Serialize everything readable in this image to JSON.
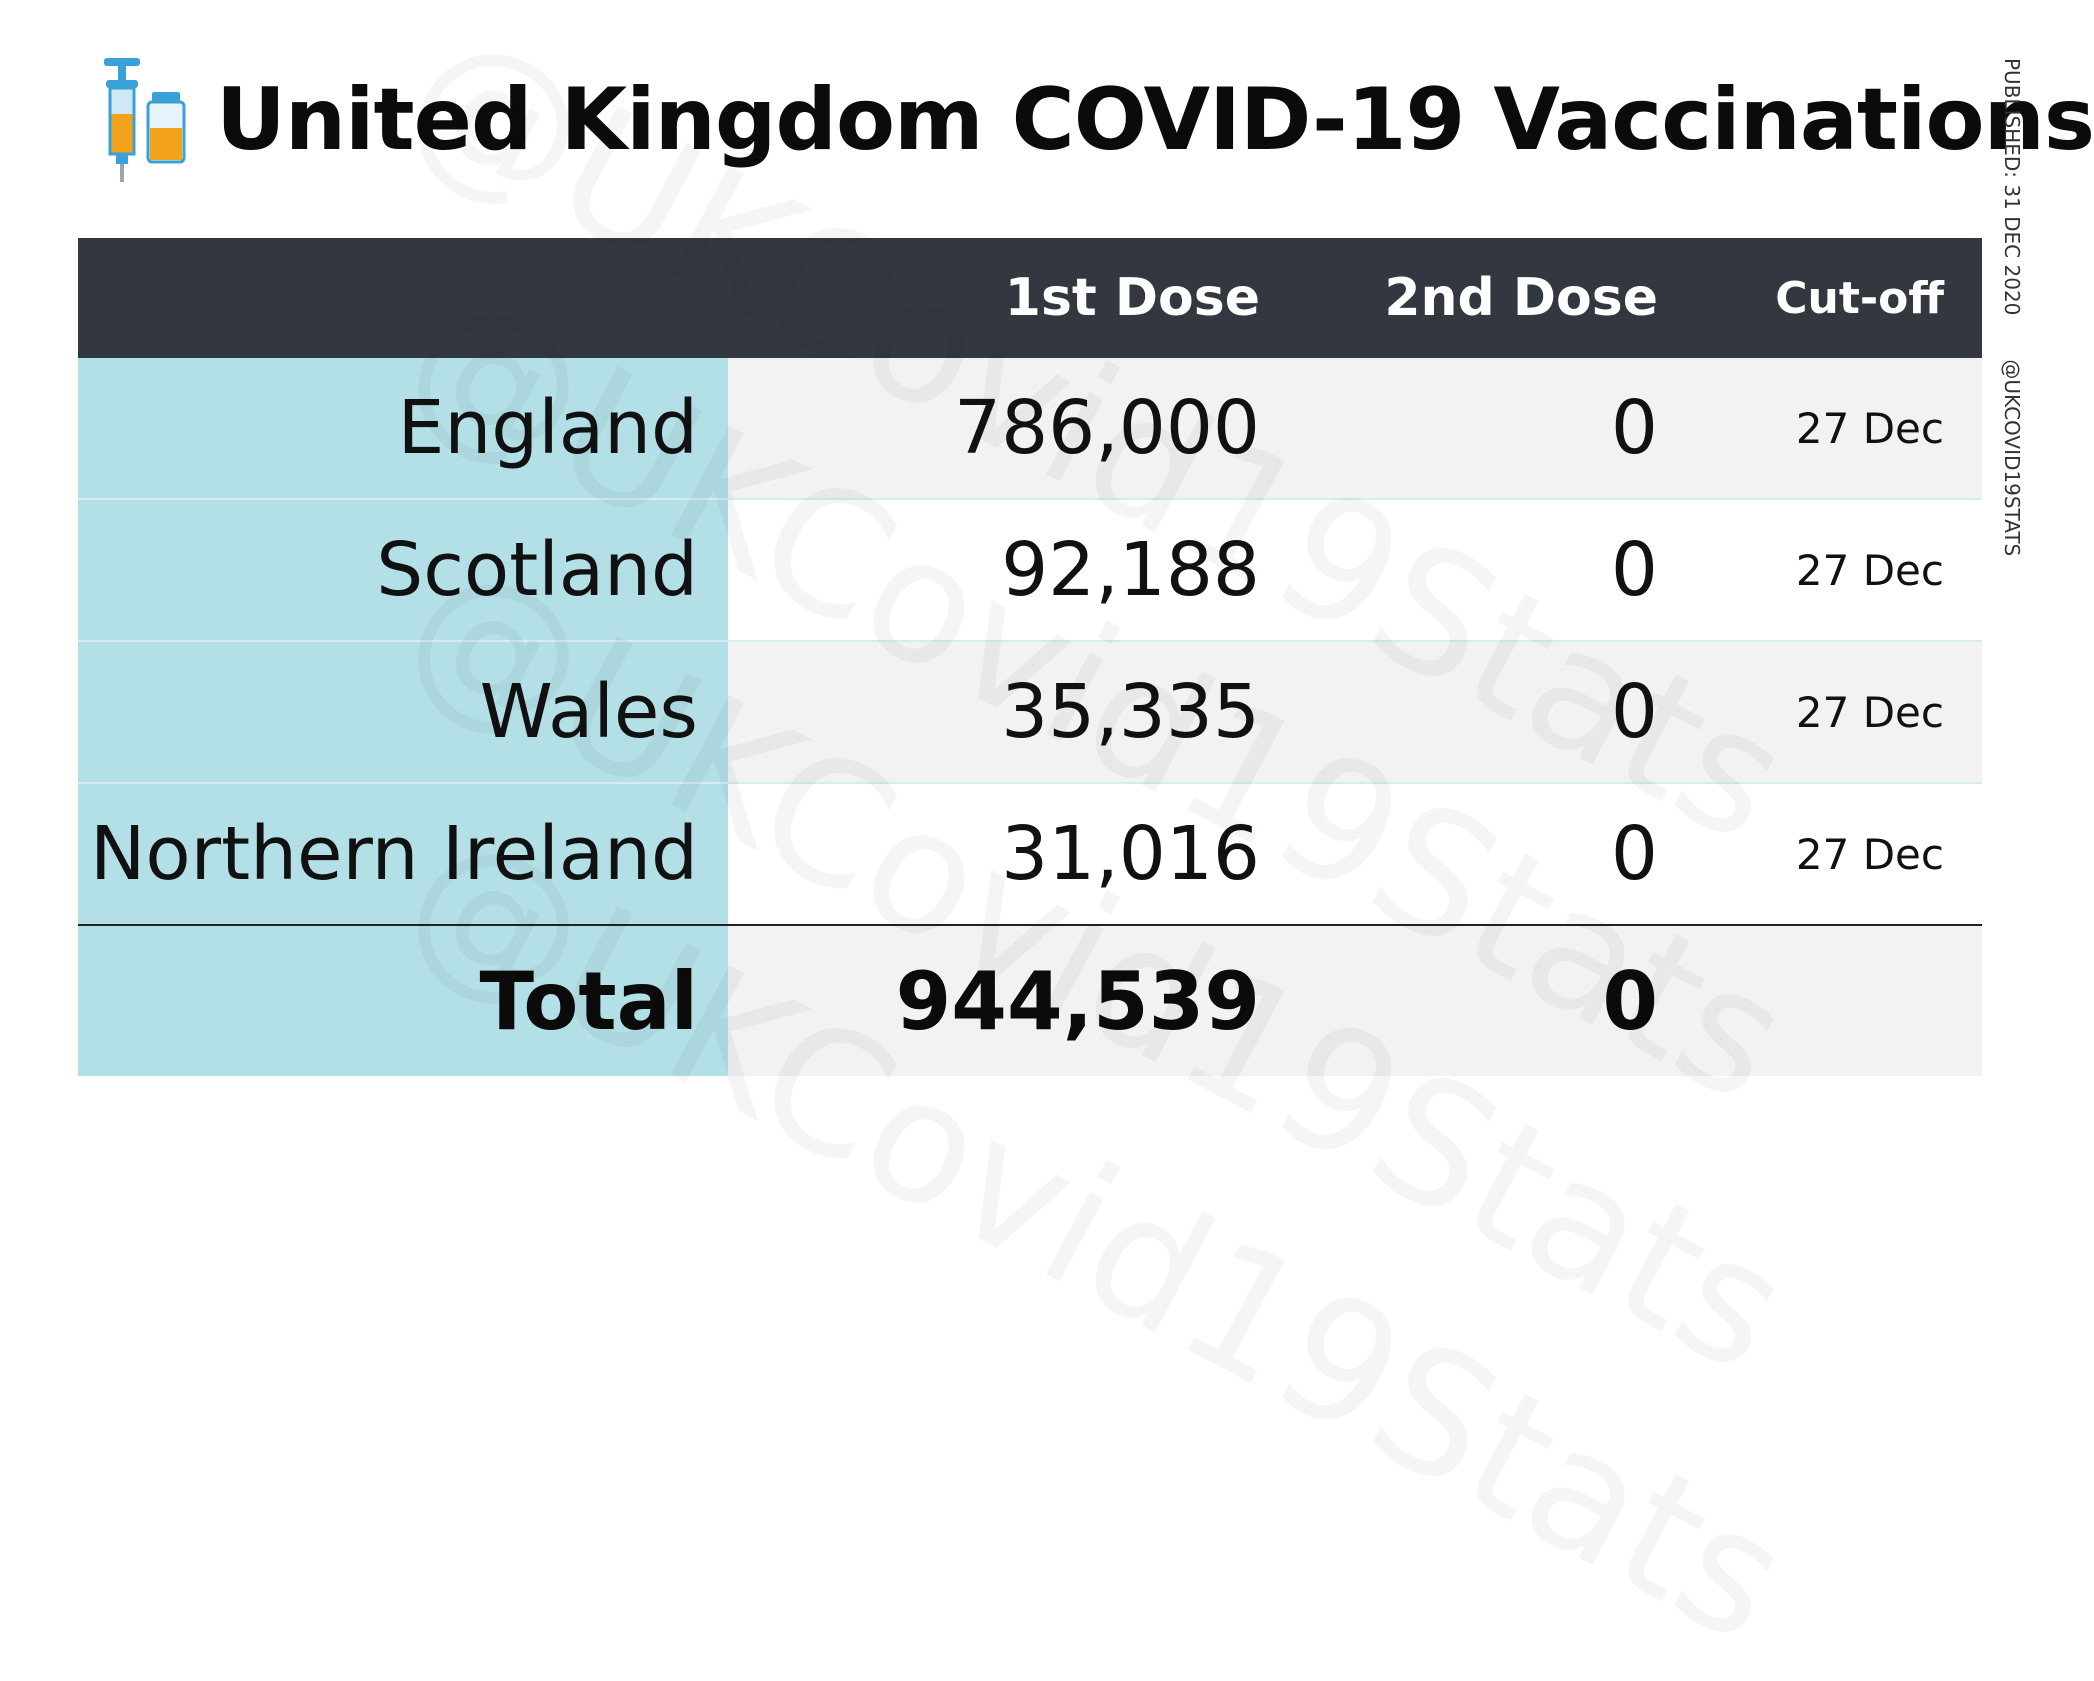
{
  "title": "United Kingdom COVID-19 Vaccinations",
  "side_meta": {
    "published": "PUBLISHED: 31 DEC 2020",
    "handle": "@UKCOVID19STATS"
  },
  "watermark": "@UKCovid19Stats",
  "icons": {
    "title_icon": "syringe-and-vial-icon"
  },
  "colors": {
    "header_bg": "#333840",
    "name_column_bg": "#b3dfe6",
    "stripe_bg": "#f2f2f2"
  },
  "table": {
    "headers": {
      "name": "",
      "first_dose": "1st Dose",
      "second_dose": "2nd Dose",
      "cutoff": "Cut-off"
    },
    "rows": [
      {
        "name": "England",
        "first_dose": "786,000",
        "second_dose": "0",
        "cutoff": "27 Dec"
      },
      {
        "name": "Scotland",
        "first_dose": "92,188",
        "second_dose": "0",
        "cutoff": "27 Dec"
      },
      {
        "name": "Wales",
        "first_dose": "35,335",
        "second_dose": "0",
        "cutoff": "27 Dec"
      },
      {
        "name": "Northern Ireland",
        "first_dose": "31,016",
        "second_dose": "0",
        "cutoff": "27 Dec"
      }
    ],
    "total": {
      "name": "Total",
      "first_dose": "944,539",
      "second_dose": "0",
      "cutoff": ""
    }
  }
}
